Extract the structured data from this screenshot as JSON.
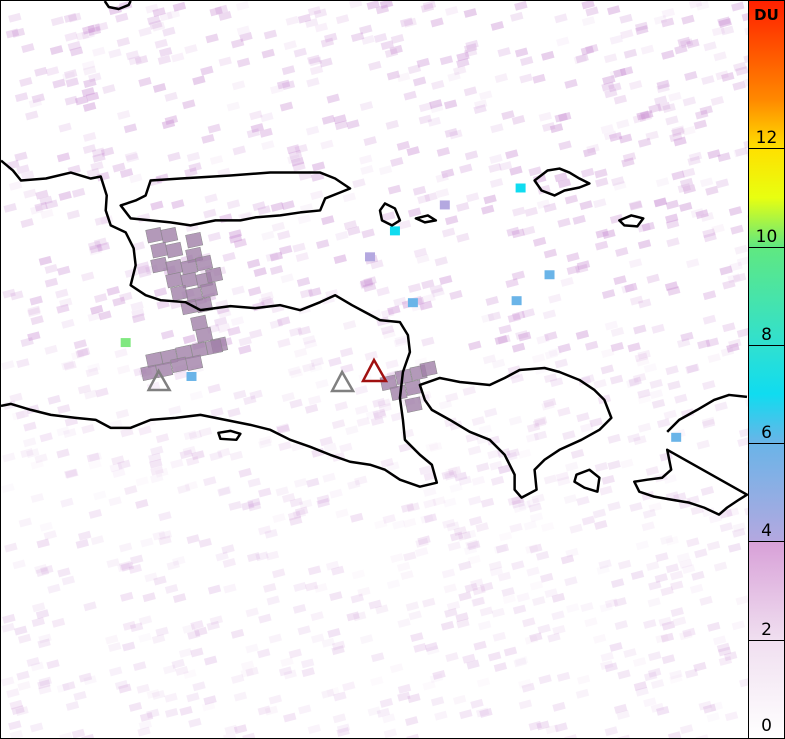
{
  "colorbar": {
    "unit": "DU",
    "min": 0,
    "max": 15,
    "ticks": [
      "0",
      "2",
      "4",
      "6",
      "8",
      "10",
      "12"
    ],
    "stops": [
      {
        "v": 0,
        "c": "#ffffff"
      },
      {
        "v": 2,
        "c": "#f0dff0"
      },
      {
        "v": 4,
        "c": "#d8a0d8"
      },
      {
        "v": 4,
        "c": "#b4a8e0"
      },
      {
        "v": 6,
        "c": "#6ab4e8"
      },
      {
        "v": 7,
        "c": "#10dcf0"
      },
      {
        "v": 8,
        "c": "#30e0d0"
      },
      {
        "v": 10,
        "c": "#60e880"
      },
      {
        "v": 11,
        "c": "#e8ff10"
      },
      {
        "v": 12,
        "c": "#ffe000"
      },
      {
        "v": 13,
        "c": "#ff8800"
      },
      {
        "v": 15,
        "c": "#ff2000"
      }
    ]
  },
  "markers": [
    {
      "name": "volcano-gray-west",
      "color": "#808080"
    },
    {
      "name": "volcano-gray-east",
      "color": "#808080"
    },
    {
      "name": "volcano-active",
      "color": "#a01010"
    }
  ],
  "colors": {
    "coastline": "#000000",
    "plume": "#a080a8"
  }
}
